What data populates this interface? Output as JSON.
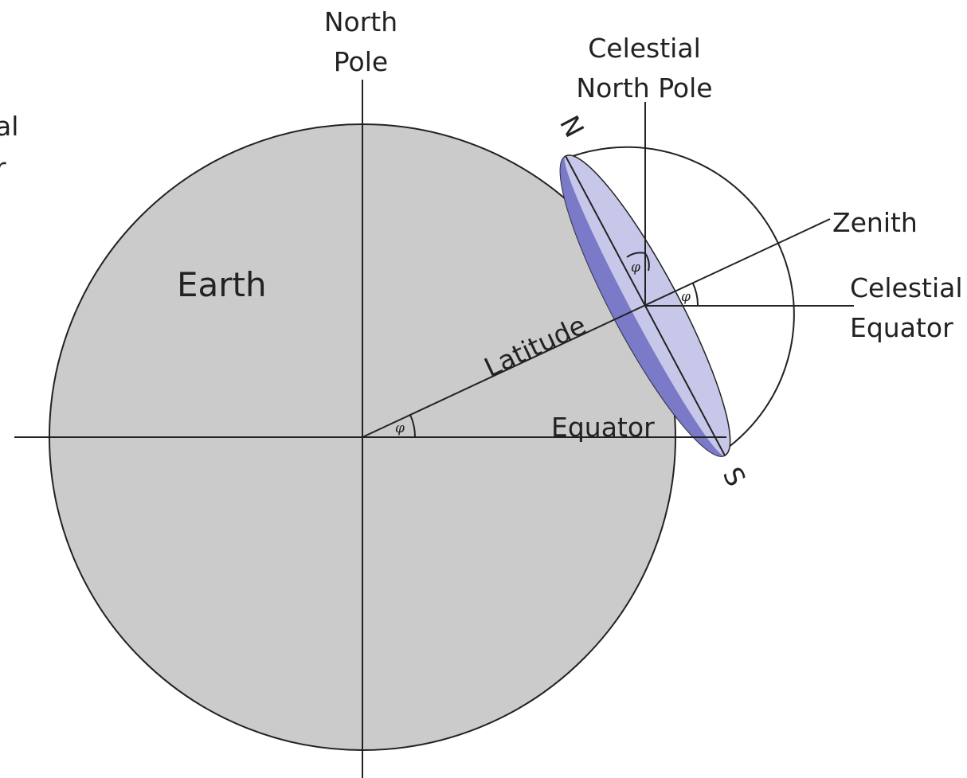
{
  "labels": {
    "north_pole_1": "North",
    "north_pole_2": "Pole",
    "celestial_north_pole_1": "Celestial",
    "celestial_north_pole_2": "North Pole",
    "celestial_equator_left_1": "al",
    "celestial_equator_left_2": "r",
    "earth": "Earth",
    "latitude": "Latitude",
    "equator": "Equator",
    "zenith": "Zenith",
    "celestial_equator_1": "Celestial",
    "celestial_equator_2": "Equator",
    "horizon_north": "N",
    "horizon_south": "S",
    "latitude_symbol": "φ"
  },
  "colors": {
    "earth_fill": "#cbcbcb",
    "horizon_plane_light": "#c7c7ea",
    "horizon_plane_dark": "#7171c4",
    "stroke": "#222222"
  }
}
